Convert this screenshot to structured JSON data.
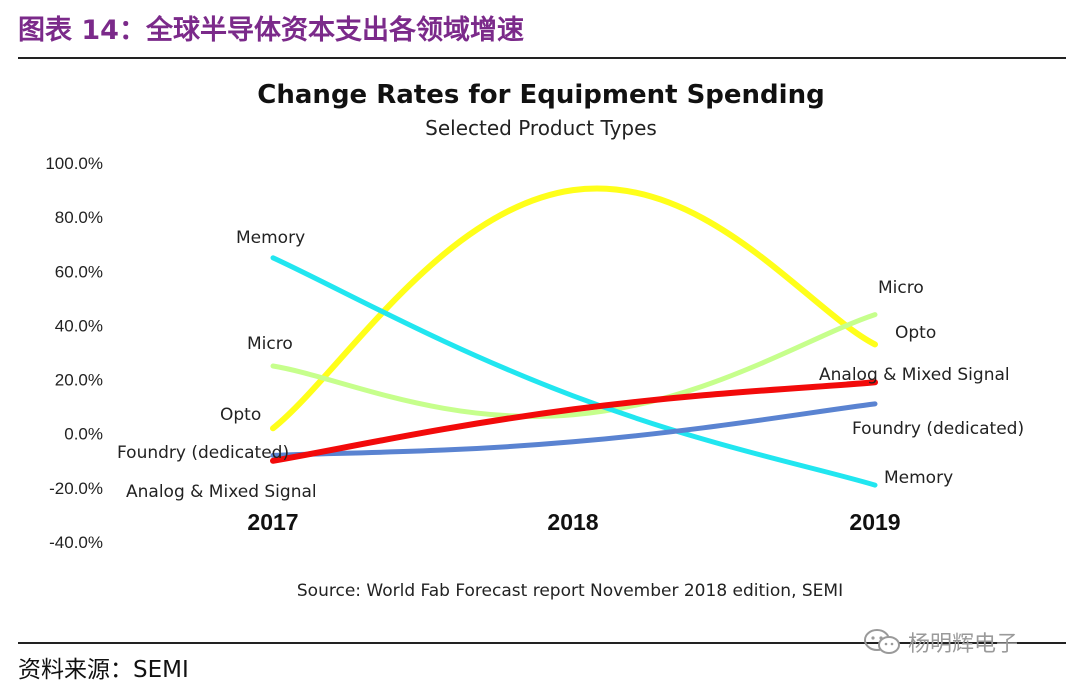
{
  "figure": {
    "title": "图表 14：全球半导体资本支出各领域增速",
    "source": "资料来源：SEMI",
    "watermark": "杨明辉电子"
  },
  "chart_data": {
    "type": "line",
    "title": "Change Rates for Equipment Spending",
    "subtitle": "Selected Product Types",
    "source_note": "Source: World Fab Forecast report November 2018 edition, SEMI",
    "categories": [
      "2017",
      "2018",
      "2019"
    ],
    "ylim": [
      -40,
      100
    ],
    "y_ticks": [
      {
        "value": 100,
        "label": "100.0%"
      },
      {
        "value": 80,
        "label": "80.0%"
      },
      {
        "value": 60,
        "label": "60.0%"
      },
      {
        "value": 40,
        "label": "40.0%"
      },
      {
        "value": 20,
        "label": "20.0%"
      },
      {
        "value": 0,
        "label": "0.0%"
      },
      {
        "value": -20,
        "label": "-20.0%"
      },
      {
        "value": -40,
        "label": "-40.0%"
      }
    ],
    "grid": false,
    "legend": "none",
    "series": [
      {
        "name": "Memory",
        "values": [
          65,
          14,
          -19
        ],
        "color": "#21e6f0",
        "width": 5
      },
      {
        "name": "Opto",
        "values": [
          2,
          90,
          33
        ],
        "color": "#ffff1a",
        "width": 6
      },
      {
        "name": "Micro",
        "values": [
          25,
          7,
          44
        ],
        "color": "#c6ff8c",
        "width": 5
      },
      {
        "name": "Foundry (dedicated)",
        "values": [
          -8,
          -3,
          11
        ],
        "color": "#5a83d1",
        "width": 5
      },
      {
        "name": "Analog & Mixed Signal",
        "values": [
          -10,
          9,
          19
        ],
        "color": "#f20a0a",
        "width": 6
      }
    ]
  }
}
